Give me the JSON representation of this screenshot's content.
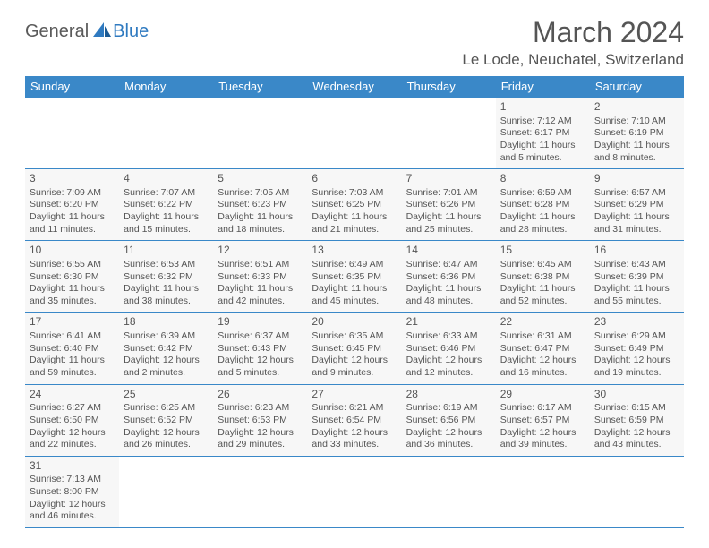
{
  "brand": {
    "part1": "General",
    "part2": "Blue"
  },
  "title": "March 2024",
  "location": "Le Locle, Neuchatel, Switzerland",
  "colors": {
    "header_bg": "#3a88c8",
    "header_text": "#ffffff",
    "cell_bg": "#f7f7f7",
    "border": "#3a88c8",
    "text": "#555555",
    "brand_blue": "#2f7ac0"
  },
  "day_headers": [
    "Sunday",
    "Monday",
    "Tuesday",
    "Wednesday",
    "Thursday",
    "Friday",
    "Saturday"
  ],
  "weeks": [
    [
      null,
      null,
      null,
      null,
      null,
      {
        "n": 1,
        "sunrise": "Sunrise: 7:12 AM",
        "sunset": "Sunset: 6:17 PM",
        "daylight": "Daylight: 11 hours and 5 minutes."
      },
      {
        "n": 2,
        "sunrise": "Sunrise: 7:10 AM",
        "sunset": "Sunset: 6:19 PM",
        "daylight": "Daylight: 11 hours and 8 minutes."
      }
    ],
    [
      {
        "n": 3,
        "sunrise": "Sunrise: 7:09 AM",
        "sunset": "Sunset: 6:20 PM",
        "daylight": "Daylight: 11 hours and 11 minutes."
      },
      {
        "n": 4,
        "sunrise": "Sunrise: 7:07 AM",
        "sunset": "Sunset: 6:22 PM",
        "daylight": "Daylight: 11 hours and 15 minutes."
      },
      {
        "n": 5,
        "sunrise": "Sunrise: 7:05 AM",
        "sunset": "Sunset: 6:23 PM",
        "daylight": "Daylight: 11 hours and 18 minutes."
      },
      {
        "n": 6,
        "sunrise": "Sunrise: 7:03 AM",
        "sunset": "Sunset: 6:25 PM",
        "daylight": "Daylight: 11 hours and 21 minutes."
      },
      {
        "n": 7,
        "sunrise": "Sunrise: 7:01 AM",
        "sunset": "Sunset: 6:26 PM",
        "daylight": "Daylight: 11 hours and 25 minutes."
      },
      {
        "n": 8,
        "sunrise": "Sunrise: 6:59 AM",
        "sunset": "Sunset: 6:28 PM",
        "daylight": "Daylight: 11 hours and 28 minutes."
      },
      {
        "n": 9,
        "sunrise": "Sunrise: 6:57 AM",
        "sunset": "Sunset: 6:29 PM",
        "daylight": "Daylight: 11 hours and 31 minutes."
      }
    ],
    [
      {
        "n": 10,
        "sunrise": "Sunrise: 6:55 AM",
        "sunset": "Sunset: 6:30 PM",
        "daylight": "Daylight: 11 hours and 35 minutes."
      },
      {
        "n": 11,
        "sunrise": "Sunrise: 6:53 AM",
        "sunset": "Sunset: 6:32 PM",
        "daylight": "Daylight: 11 hours and 38 minutes."
      },
      {
        "n": 12,
        "sunrise": "Sunrise: 6:51 AM",
        "sunset": "Sunset: 6:33 PM",
        "daylight": "Daylight: 11 hours and 42 minutes."
      },
      {
        "n": 13,
        "sunrise": "Sunrise: 6:49 AM",
        "sunset": "Sunset: 6:35 PM",
        "daylight": "Daylight: 11 hours and 45 minutes."
      },
      {
        "n": 14,
        "sunrise": "Sunrise: 6:47 AM",
        "sunset": "Sunset: 6:36 PM",
        "daylight": "Daylight: 11 hours and 48 minutes."
      },
      {
        "n": 15,
        "sunrise": "Sunrise: 6:45 AM",
        "sunset": "Sunset: 6:38 PM",
        "daylight": "Daylight: 11 hours and 52 minutes."
      },
      {
        "n": 16,
        "sunrise": "Sunrise: 6:43 AM",
        "sunset": "Sunset: 6:39 PM",
        "daylight": "Daylight: 11 hours and 55 minutes."
      }
    ],
    [
      {
        "n": 17,
        "sunrise": "Sunrise: 6:41 AM",
        "sunset": "Sunset: 6:40 PM",
        "daylight": "Daylight: 11 hours and 59 minutes."
      },
      {
        "n": 18,
        "sunrise": "Sunrise: 6:39 AM",
        "sunset": "Sunset: 6:42 PM",
        "daylight": "Daylight: 12 hours and 2 minutes."
      },
      {
        "n": 19,
        "sunrise": "Sunrise: 6:37 AM",
        "sunset": "Sunset: 6:43 PM",
        "daylight": "Daylight: 12 hours and 5 minutes."
      },
      {
        "n": 20,
        "sunrise": "Sunrise: 6:35 AM",
        "sunset": "Sunset: 6:45 PM",
        "daylight": "Daylight: 12 hours and 9 minutes."
      },
      {
        "n": 21,
        "sunrise": "Sunrise: 6:33 AM",
        "sunset": "Sunset: 6:46 PM",
        "daylight": "Daylight: 12 hours and 12 minutes."
      },
      {
        "n": 22,
        "sunrise": "Sunrise: 6:31 AM",
        "sunset": "Sunset: 6:47 PM",
        "daylight": "Daylight: 12 hours and 16 minutes."
      },
      {
        "n": 23,
        "sunrise": "Sunrise: 6:29 AM",
        "sunset": "Sunset: 6:49 PM",
        "daylight": "Daylight: 12 hours and 19 minutes."
      }
    ],
    [
      {
        "n": 24,
        "sunrise": "Sunrise: 6:27 AM",
        "sunset": "Sunset: 6:50 PM",
        "daylight": "Daylight: 12 hours and 22 minutes."
      },
      {
        "n": 25,
        "sunrise": "Sunrise: 6:25 AM",
        "sunset": "Sunset: 6:52 PM",
        "daylight": "Daylight: 12 hours and 26 minutes."
      },
      {
        "n": 26,
        "sunrise": "Sunrise: 6:23 AM",
        "sunset": "Sunset: 6:53 PM",
        "daylight": "Daylight: 12 hours and 29 minutes."
      },
      {
        "n": 27,
        "sunrise": "Sunrise: 6:21 AM",
        "sunset": "Sunset: 6:54 PM",
        "daylight": "Daylight: 12 hours and 33 minutes."
      },
      {
        "n": 28,
        "sunrise": "Sunrise: 6:19 AM",
        "sunset": "Sunset: 6:56 PM",
        "daylight": "Daylight: 12 hours and 36 minutes."
      },
      {
        "n": 29,
        "sunrise": "Sunrise: 6:17 AM",
        "sunset": "Sunset: 6:57 PM",
        "daylight": "Daylight: 12 hours and 39 minutes."
      },
      {
        "n": 30,
        "sunrise": "Sunrise: 6:15 AM",
        "sunset": "Sunset: 6:59 PM",
        "daylight": "Daylight: 12 hours and 43 minutes."
      }
    ],
    [
      {
        "n": 31,
        "sunrise": "Sunrise: 7:13 AM",
        "sunset": "Sunset: 8:00 PM",
        "daylight": "Daylight: 12 hours and 46 minutes."
      },
      null,
      null,
      null,
      null,
      null,
      null
    ]
  ]
}
